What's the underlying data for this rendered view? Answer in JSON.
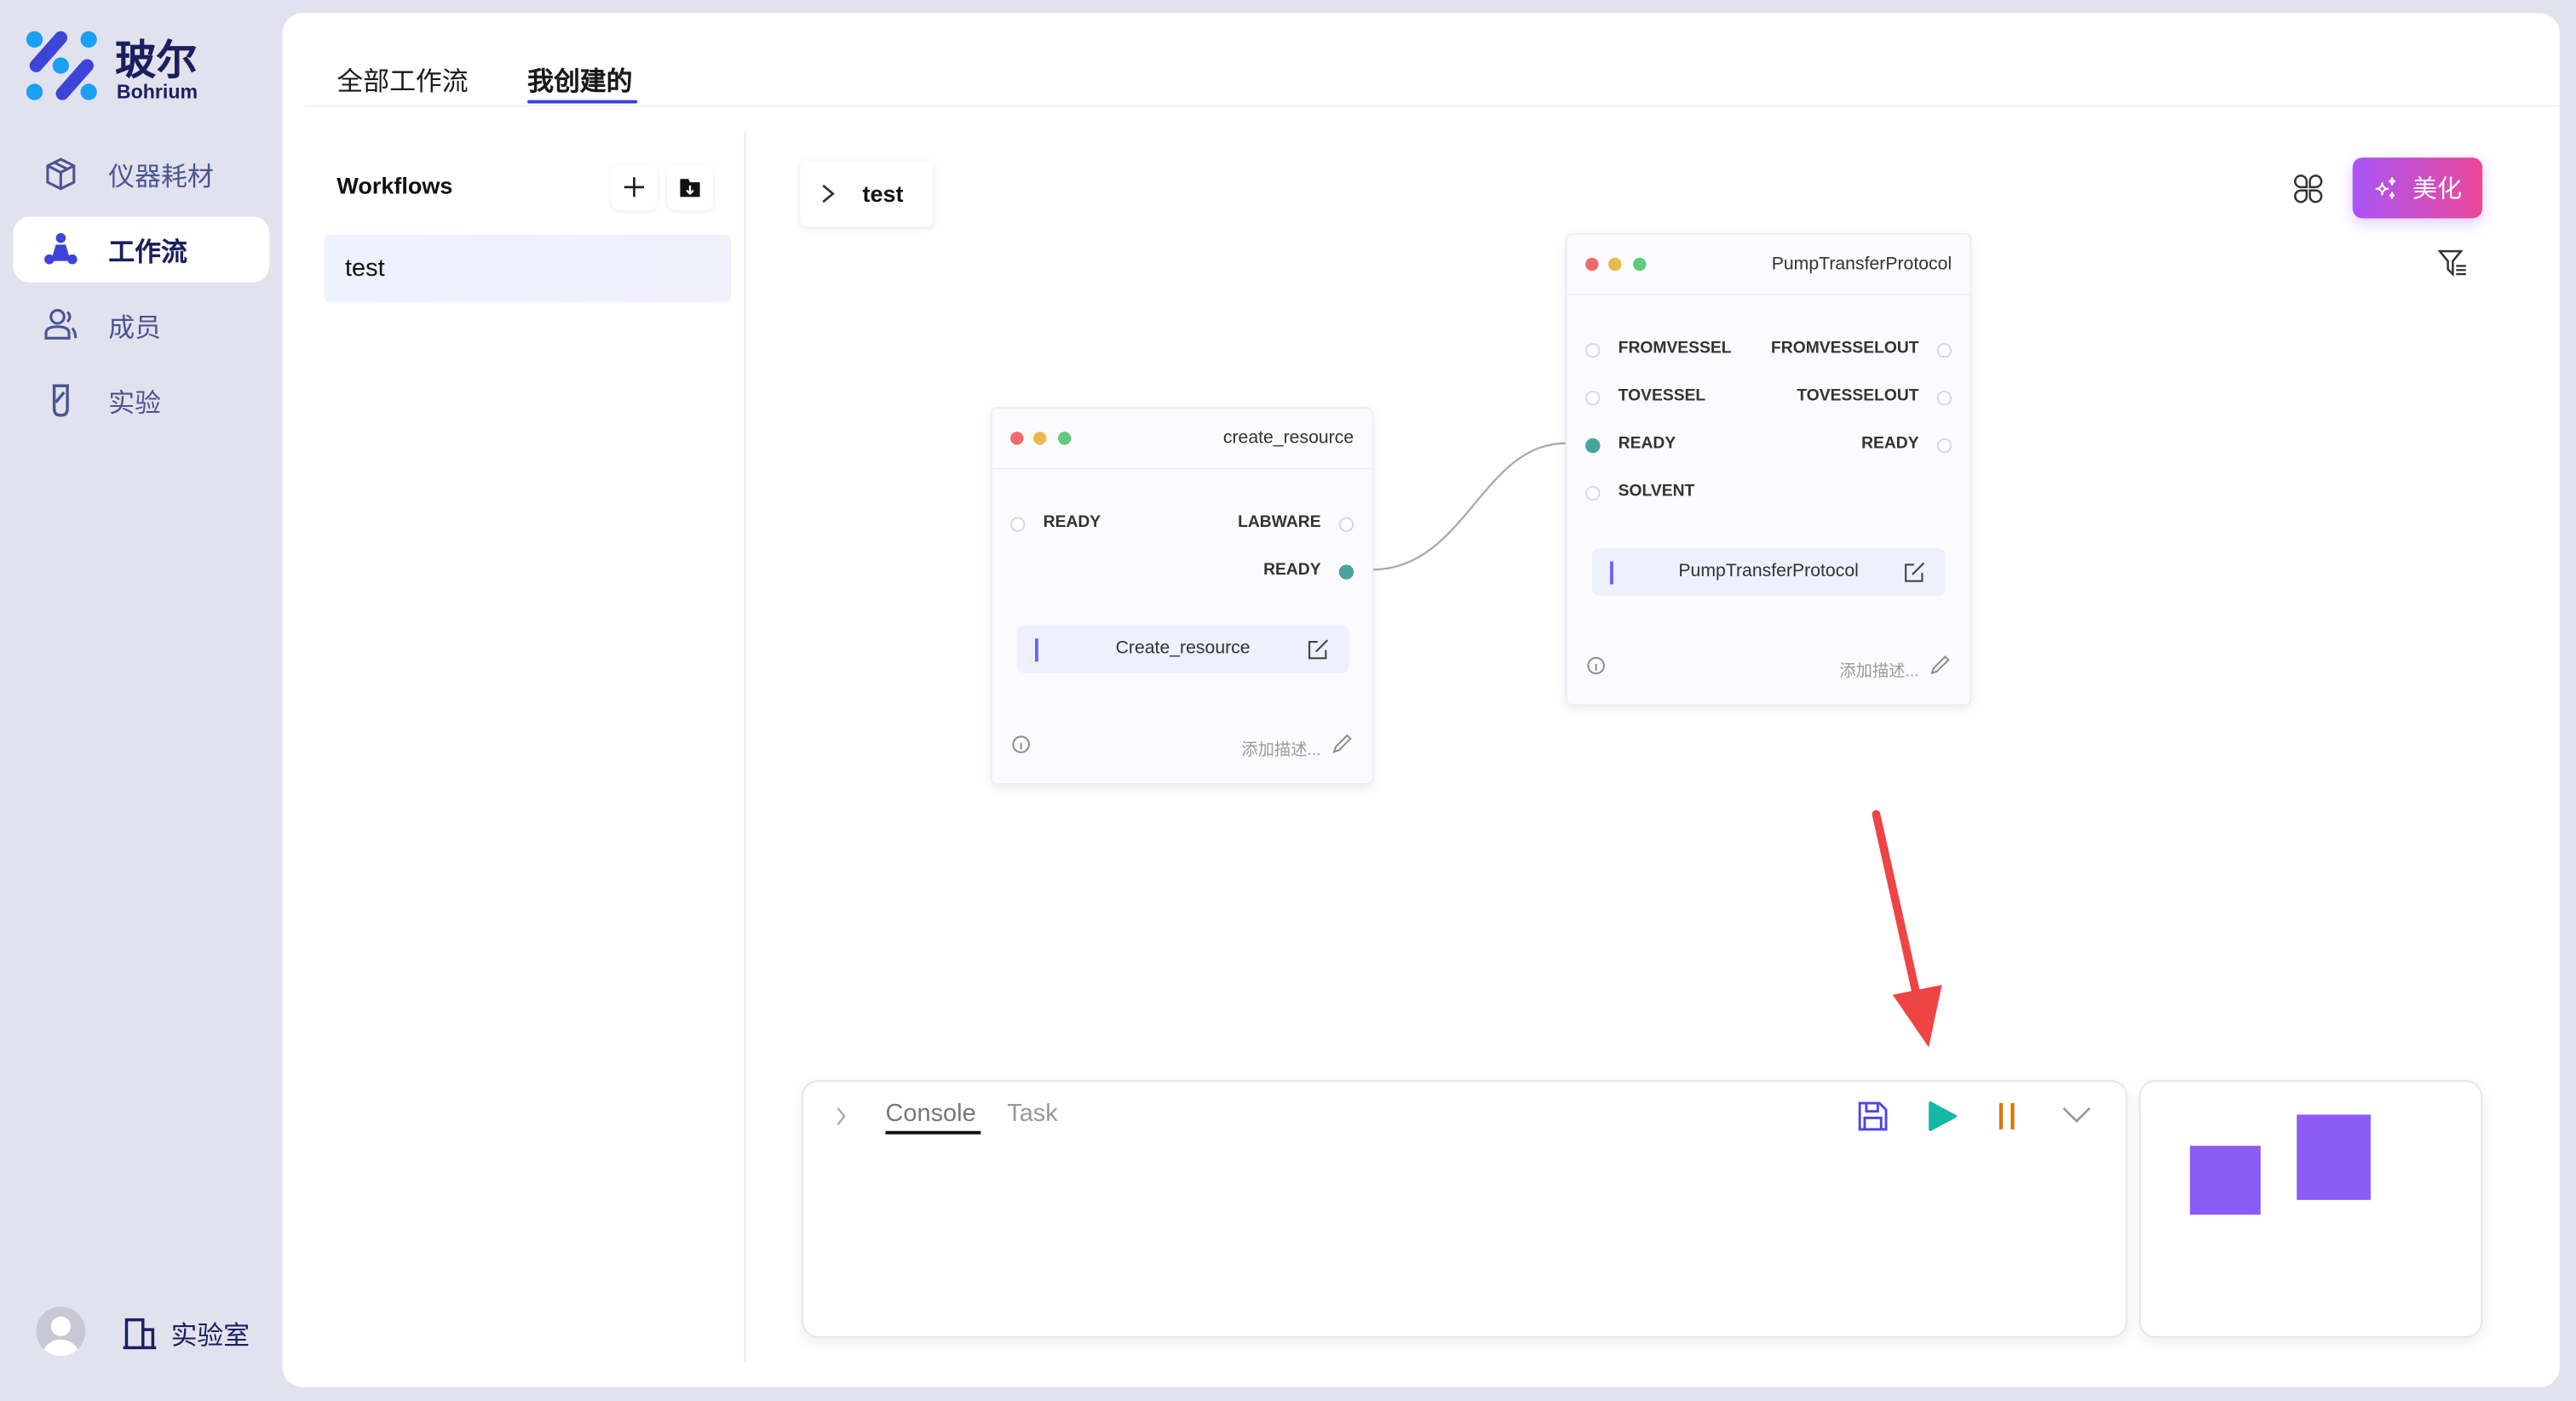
{
  "brand": {
    "name_cn": "玻尔",
    "name_en": "Bohrium"
  },
  "sidebar": {
    "items": [
      {
        "label": "仪器耗材",
        "icon": "box-icon"
      },
      {
        "label": "工作流",
        "icon": "workflow-icon",
        "active": true
      },
      {
        "label": "成员",
        "icon": "users-icon"
      },
      {
        "label": "实验",
        "icon": "test-tube-icon"
      }
    ],
    "lab_label": "实验室"
  },
  "tabs": [
    {
      "label": "全部工作流"
    },
    {
      "label": "我创建的",
      "active": true
    }
  ],
  "workflows": {
    "title": "Workflows",
    "items": [
      "test"
    ]
  },
  "canvas": {
    "breadcrumb": "test",
    "beautify_label": "美化",
    "nodes": [
      {
        "title": "create_resource",
        "inputs": [
          "READY"
        ],
        "outputs": [
          "LABWARE",
          "READY"
        ],
        "name": "Create_resource",
        "desc_placeholder": "添加描述..."
      },
      {
        "title": "PumpTransferProtocol",
        "inputs": [
          "FROMVESSEL",
          "TOVESSEL",
          "READY",
          "SOLVENT"
        ],
        "outputs": [
          "FROMVESSELOUT",
          "TOVESSELOUT",
          "READY"
        ],
        "name": "PumpTransferProtocol",
        "desc_placeholder": "添加描述..."
      }
    ]
  },
  "console": {
    "tabs": [
      "Console",
      "Task"
    ],
    "active_tab": "Console"
  },
  "colors": {
    "accent": "#3b3fe0",
    "connected_port": "#4aa3a0",
    "play": "#14b8a6",
    "pause": "#d97706",
    "minimap": "#8b5cf6",
    "arrow": "#ef4444"
  }
}
